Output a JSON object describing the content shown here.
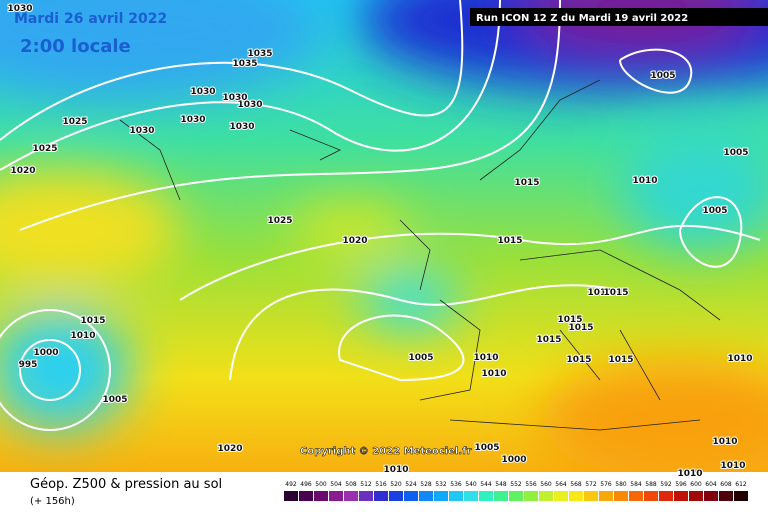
{
  "header": {
    "date": "Mardi 26 avril 2022",
    "time": "2:00 locale",
    "run": "Run ICON 12 Z du Mardi 19 avril 2022"
  },
  "footer": {
    "title": "Géop. Z500 & pression au sol",
    "lead": "(+ 156h)",
    "copyright": "Copyright © 2022 Meteociel.fr"
  },
  "scale": {
    "labels": [
      "492",
      "496",
      "500",
      "504",
      "508",
      "512",
      "516",
      "520",
      "524",
      "528",
      "532",
      "536",
      "540",
      "544",
      "548",
      "552",
      "556",
      "560",
      "564",
      "568",
      "572",
      "576",
      "580",
      "584",
      "588",
      "592",
      "596",
      "600",
      "604",
      "608",
      "612"
    ]
  },
  "isobars": [
    "1030",
    "1035",
    "1035",
    "1030",
    "1030",
    "1030",
    "1025",
    "1030",
    "1030",
    "1030",
    "1025",
    "1020",
    "1025",
    "1020",
    "1015",
    "1015",
    "1010",
    "1005",
    "1005",
    "1005",
    "1010",
    "1015",
    "1015",
    "1015",
    "1015",
    "1015",
    "1015",
    "1005",
    "1010",
    "1010",
    "1010",
    "1015",
    "1010",
    "1000",
    "995",
    "1005",
    "1020",
    "1010",
    "1005",
    "1000",
    "1010",
    "1010",
    "1010"
  ]
}
